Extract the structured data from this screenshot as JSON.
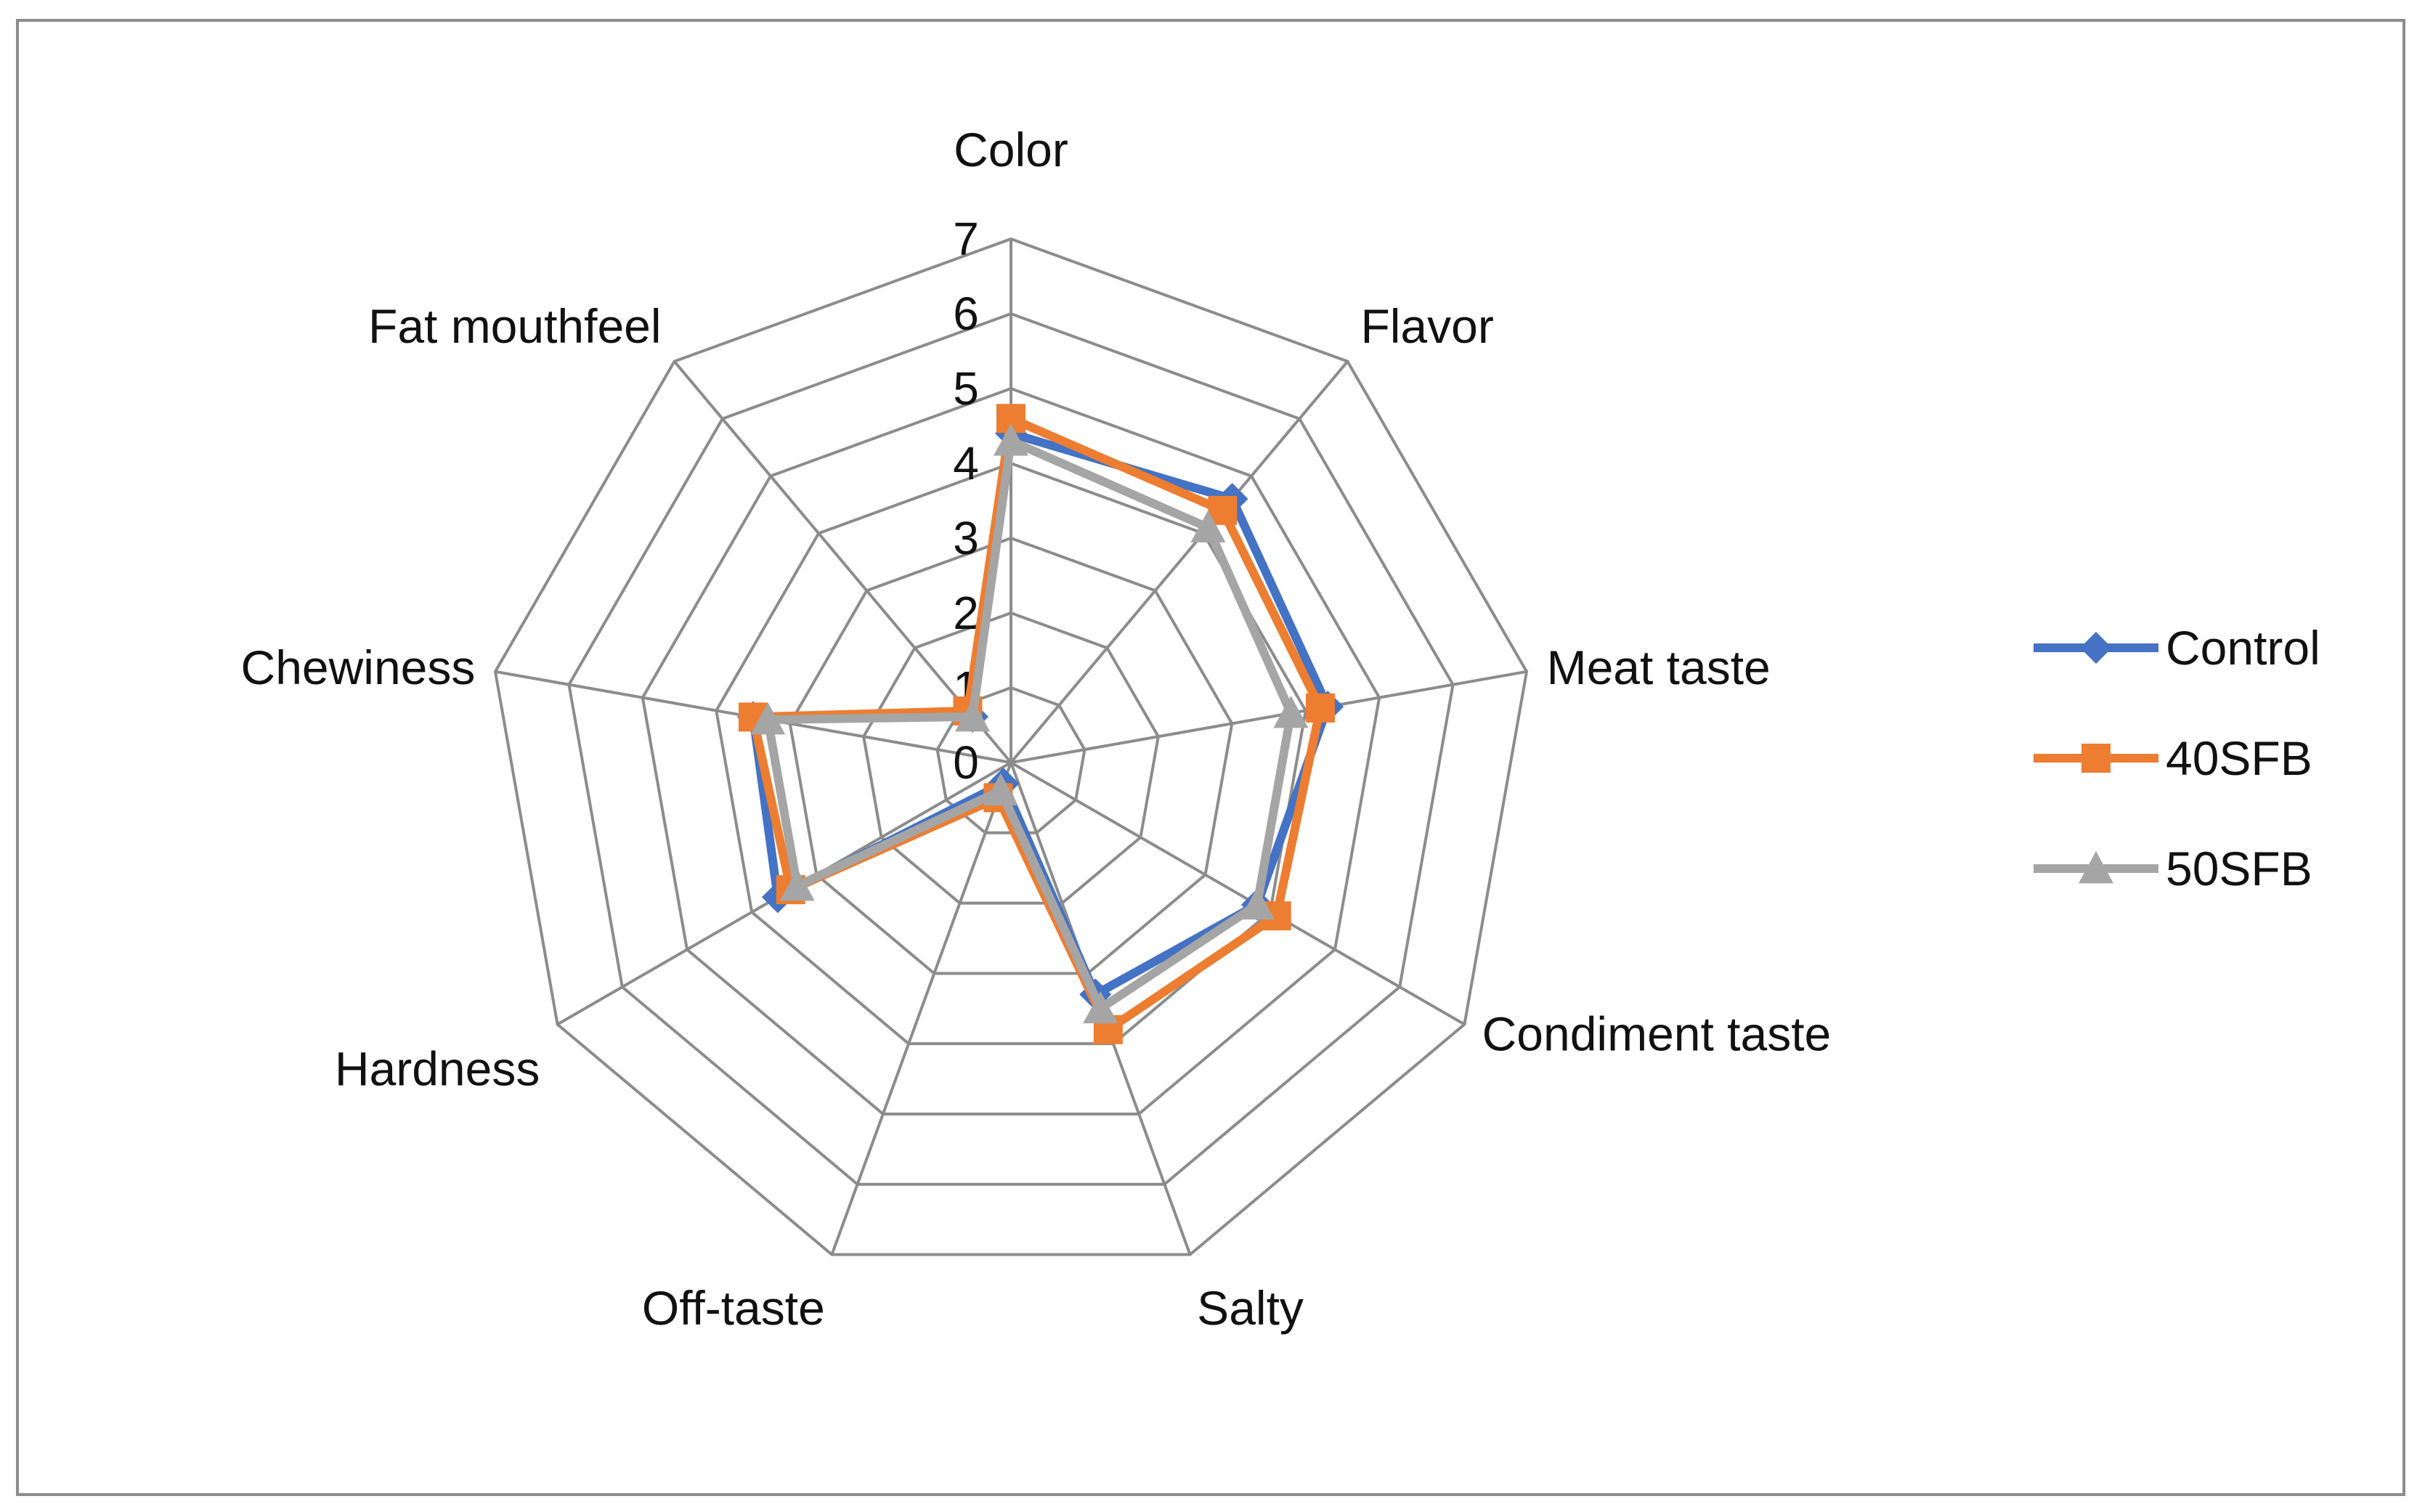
{
  "chart_data": {
    "type": "radar",
    "title": "",
    "categories": [
      "Color",
      "Flavor",
      "Meat taste",
      "Condiment taste",
      "Salty",
      "Off-taste",
      "Hardness",
      "Chewiness",
      "Fat mouthfeel"
    ],
    "scale": {
      "min": 0,
      "max": 7,
      "step": 1,
      "ticks": [
        "0",
        "1",
        "2",
        "3",
        "4",
        "5",
        "6",
        "7"
      ]
    },
    "grid": true,
    "legend_position": "right",
    "series": [
      {
        "name": "Control",
        "color": "#4472C4",
        "marker": "diamond",
        "values": [
          4.4,
          4.6,
          4.3,
          3.8,
          3.3,
          0.3,
          3.6,
          3.5,
          0.8
        ]
      },
      {
        "name": "40SFB",
        "color": "#ED7D31",
        "marker": "square",
        "values": [
          4.6,
          4.4,
          4.2,
          4.1,
          3.8,
          0.5,
          3.4,
          3.5,
          0.9
        ]
      },
      {
        "name": "50SFB",
        "color": "#A5A5A5",
        "marker": "triangle",
        "values": [
          4.3,
          4.1,
          3.8,
          3.8,
          3.5,
          0.4,
          3.3,
          3.3,
          0.8
        ]
      }
    ]
  }
}
